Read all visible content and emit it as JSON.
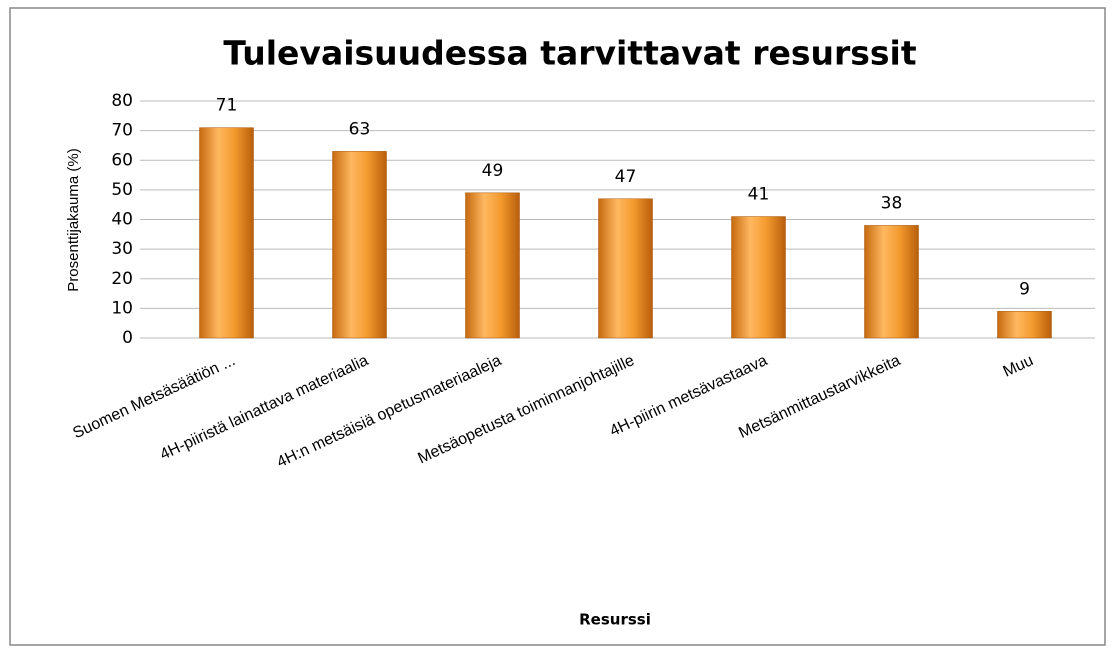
{
  "chart_data": {
    "type": "bar",
    "title": "Tulevaisuudessa tarvittavat resurssit",
    "y_label": "Prosenttijakauma (%)",
    "x_label": "Resurssi",
    "categories": [
      "Suomen Metsäsäätiön ...",
      "4H-piiristä lainattava materiaalia",
      "4H:n metsäisiä opetusmateriaaleja",
      "Metsäopetusta toiminnanjohtajille",
      "4H-piirin metsävastaava",
      "Metsänmittaustarvikkeita",
      "Muu"
    ],
    "values": [
      71,
      63,
      49,
      47,
      41,
      38,
      9
    ],
    "color": "#f39a2e",
    "ylim": [
      0,
      80
    ],
    "yticks": [
      0,
      10,
      20,
      30,
      40,
      50,
      60,
      70,
      80
    ],
    "grid": true
  }
}
